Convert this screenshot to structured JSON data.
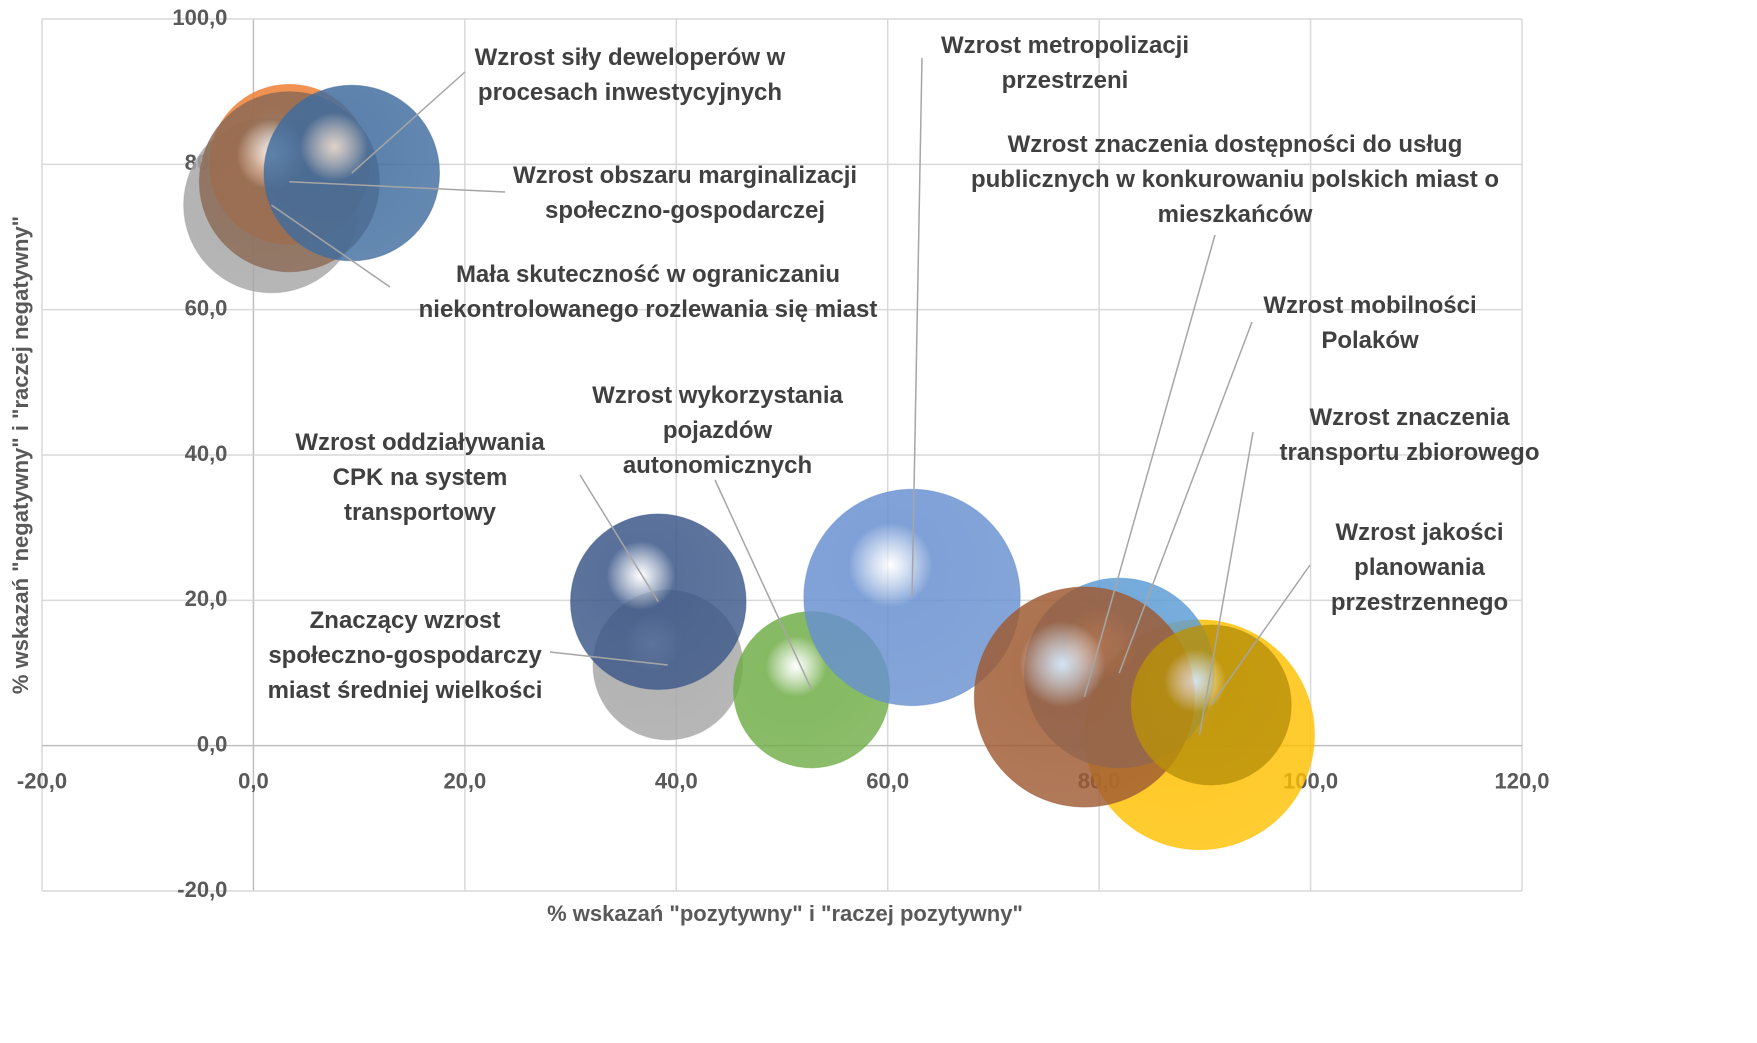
{
  "chart_data": {
    "type": "bubble",
    "x_label": "% wskazań \"pozytywny\" i \"raczej pozytywny\"",
    "y_label": "% wskazań \"negatywny\" i \"raczej negatywny\"",
    "xlim": [
      -20,
      120
    ],
    "xticks": [
      {
        "value": -20,
        "label": "-20,0"
      },
      {
        "value": 0,
        "label": "0,0"
      },
      {
        "value": 20,
        "label": "20,0"
      },
      {
        "value": 40,
        "label": "40,0"
      },
      {
        "value": 60,
        "label": "60,0"
      },
      {
        "value": 80,
        "label": "80,0"
      },
      {
        "value": 100,
        "label": "100,0"
      },
      {
        "value": 120,
        "label": "120,0"
      }
    ],
    "ylim": [
      -20,
      100
    ],
    "yticks": [
      {
        "value": -20,
        "label": "-20,0"
      },
      {
        "value": 0,
        "label": "0,0"
      },
      {
        "value": 20,
        "label": "20,0"
      },
      {
        "value": 40,
        "label": "40,0"
      },
      {
        "value": 60,
        "label": "60,0"
      },
      {
        "value": 80,
        "label": "80,0"
      },
      {
        "value": 100,
        "label": "100,0"
      }
    ],
    "grid": true,
    "points": [
      {
        "label": "Mała skuteczność w ograniczaniu niekontrolowanego rozlewania się miast",
        "x": 1.7,
        "y": 74.4,
        "size": 77,
        "color": "#a5a5a5"
      },
      {
        "label": null,
        "x": 3.4,
        "y": 80,
        "size": 64,
        "color": "#ed7d31"
      },
      {
        "label": "Wzrost obszaru marginalizacji społeczno-gospodarczej",
        "x": 3.4,
        "y": 77.6,
        "size": 81,
        "color": "#8c6a55"
      },
      {
        "label": "Wzrost siły deweloperów w procesach inwestycyjnych",
        "x": 9.3,
        "y": 78.8,
        "size": 77,
        "color": "#3f6c9e"
      },
      {
        "label": "Znaczący wzrost społeczno-gospodarczy miast średniej wielkości",
        "x": 39.2,
        "y": 11.1,
        "size": 56,
        "color": "#a5a5a5"
      },
      {
        "label": "Wzrost oddziaływania CPK na system transportowy",
        "x": 38.3,
        "y": 19.8,
        "size": 77,
        "color": "#3b5788"
      },
      {
        "label": "Wzrost wykorzystania pojazdów autonomicznych",
        "x": 52.8,
        "y": 7.7,
        "size": 61,
        "color": "#70ad47"
      },
      {
        "label": "Wzrost metropolizacji przestrzeni",
        "x": 62.3,
        "y": 20.4,
        "size": 117,
        "color": "#6890d0"
      },
      {
        "label": "Wzrost znaczenia transportu zbiorowego",
        "x": 89.5,
        "y": 1.5,
        "size": 132,
        "color": "#ffc000"
      },
      {
        "label": "Wzrost mobilności Polaków",
        "x": 81.9,
        "y": 10.0,
        "size": 90,
        "color": "#5b9bd5"
      },
      {
        "label": "Wzrost znaczenia dostępności do usług publicznych w konkurowaniu polskich miast o mieszkańców",
        "x": 78.6,
        "y": 6.7,
        "size": 121,
        "color": "#9e5a32"
      },
      {
        "label": "Wzrost jakości planowania przestrzennego",
        "x": 90.6,
        "y": 5.6,
        "size": 64,
        "color": "#b8900a"
      }
    ]
  }
}
